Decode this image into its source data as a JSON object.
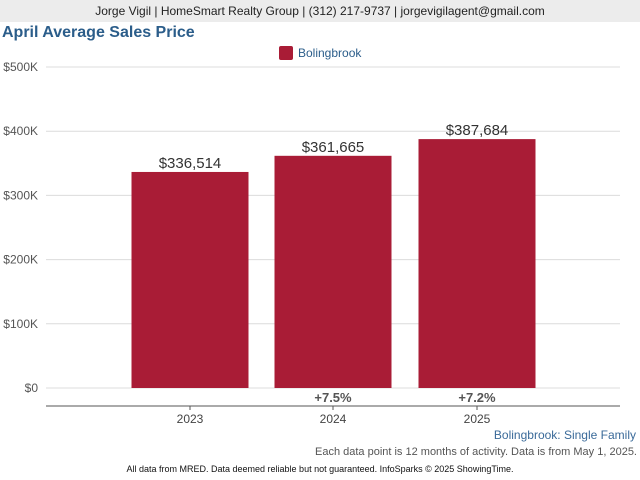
{
  "header": {
    "contact": "Jorge Vigil | HomeSmart Realty Group | (312) 217-9737 | jorgevigilagent@gmail.com"
  },
  "chart_data": {
    "type": "bar",
    "title": "April Average Sales Price",
    "categories": [
      "2023",
      "2024",
      "2025"
    ],
    "series": [
      {
        "name": "Bolingbrook",
        "color": "#a91c36",
        "values": [
          336514,
          361665,
          387684
        ],
        "value_labels": [
          "$336,514",
          "$361,665",
          "$387,684"
        ]
      }
    ],
    "change_labels": [
      "",
      "+7.5%",
      "+7.2%"
    ],
    "ylim": [
      0,
      500000
    ],
    "y_ticks": [
      0,
      100000,
      200000,
      300000,
      400000,
      500000
    ],
    "y_tick_labels": [
      "$0",
      "$100K",
      "$200K",
      "$300K",
      "$400K",
      "$500K"
    ],
    "xlabel": "",
    "ylabel": "",
    "grid": true,
    "legend_position": "top-center"
  },
  "subtitle": "Bolingbrook: Single Family",
  "note": "Each data point is 12 months of activity. Data is from May 1, 2025.",
  "footer": "All data from MRED. Data deemed reliable but not guaranteed. InfoSparks © 2025 ShowingTime."
}
